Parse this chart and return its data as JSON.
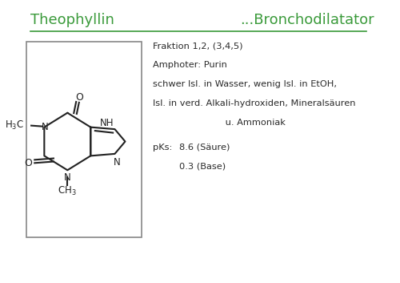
{
  "title_left": "Theophyllin",
  "title_right": "...Bronchodilatator",
  "title_color": "#3a9a3a",
  "title_underline": true,
  "bg_color": "#f0f0f0",
  "page_bg": "#ffffff",
  "box_color": "#888888",
  "text_color": "#2a2a2a",
  "info_lines": [
    "Fraktion 1,2, (3,4,5)",
    "Amphoter: Purin",
    "schwer lsl. in Wasser, wenig lsl. in EtOH,",
    "lsl. in verd. Alkali-hydroxiden, Mineralsäuren",
    "                         u. Ammoniak"
  ],
  "pks_label": "pKs:",
  "pks_line1": "8.6 (Säure)",
  "pks_line2": "0.3 (Base)"
}
